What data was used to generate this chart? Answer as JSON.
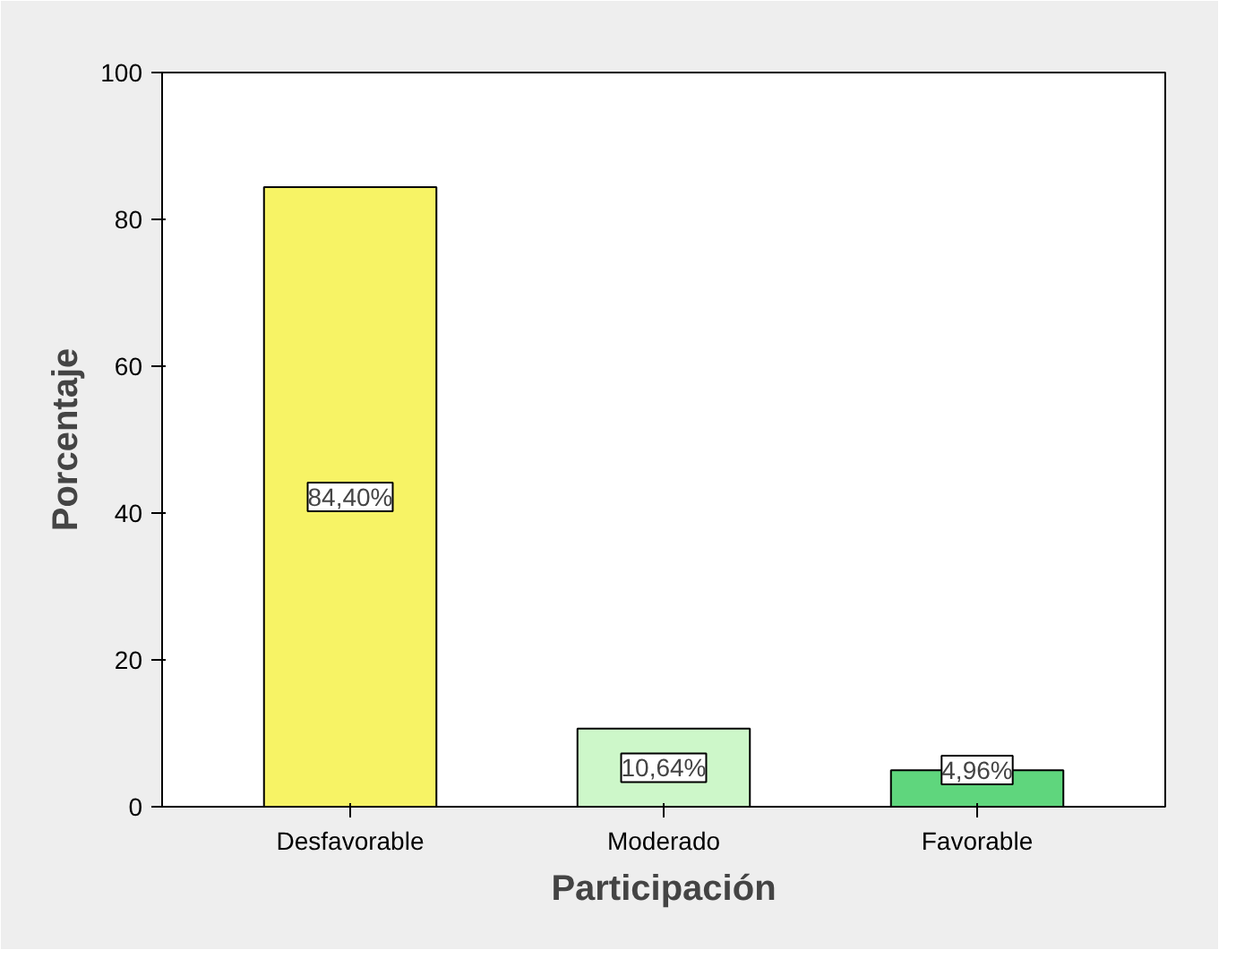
{
  "chart_data": {
    "type": "bar",
    "xlabel": "Participación",
    "ylabel": "Porcentaje",
    "categories": [
      "Desfavorable",
      "Moderado",
      "Favorable"
    ],
    "values": [
      84.4,
      10.64,
      4.96
    ],
    "colors": [
      "#f7f365",
      "#cdf7c9",
      "#5fd67d"
    ],
    "value_labels": [
      "84,40%",
      "10,64%",
      "4,96%"
    ],
    "ylim": [
      0,
      100
    ],
    "yticks": [
      0,
      20,
      40,
      60,
      80,
      100
    ]
  }
}
